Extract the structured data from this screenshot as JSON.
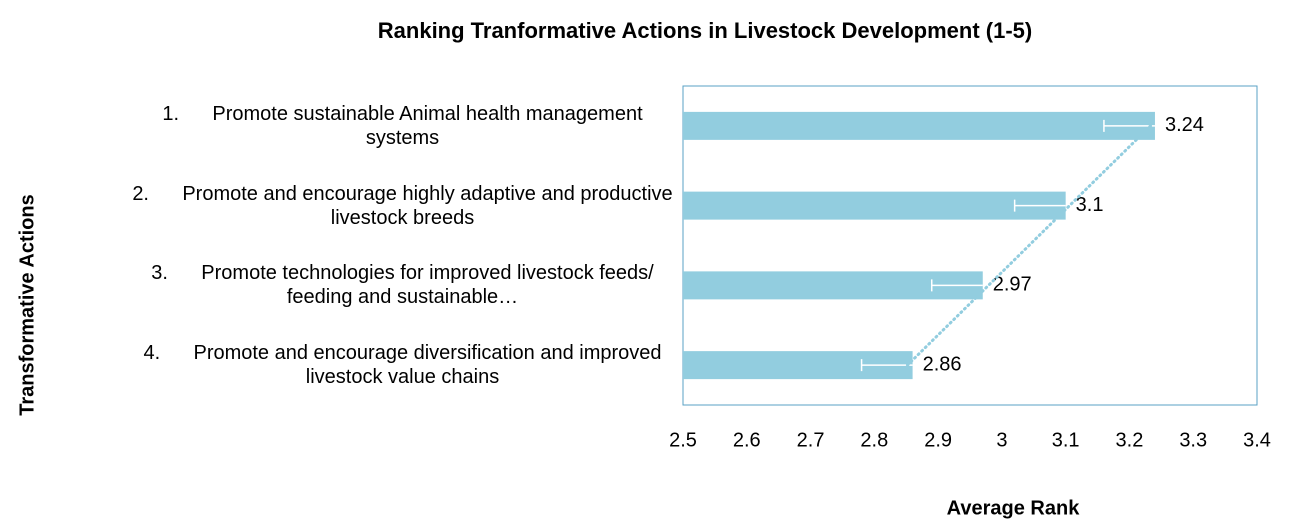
{
  "chart_data": {
    "type": "hbar",
    "title": "Ranking Tranformative Actions in Livestock Development (1-5)",
    "xlabel": "Average Rank",
    "ylabel": "Transformative Actions",
    "categories": [
      "1.      Promote sustainable Animal health management systems",
      "2.      Promote and encourage highly adaptive and productive livestock breeds",
      "3.      Promote technologies for improved livestock feeds/ feeding and sustainable…",
      "4.      Promote and encourage diversification and improved livestock value chains"
    ],
    "values": [
      3.24,
      3.1,
      2.97,
      2.86
    ],
    "errors": [
      0.08,
      0.08,
      0.08,
      0.08
    ],
    "color": "#92cddf",
    "error_color": "#ffffff",
    "trendline": true,
    "xlim": [
      2.5,
      3.4
    ],
    "xticks": [
      2.5,
      2.6,
      2.7,
      2.8,
      2.9,
      3,
      3.1,
      3.2,
      3.3,
      3.4
    ]
  }
}
